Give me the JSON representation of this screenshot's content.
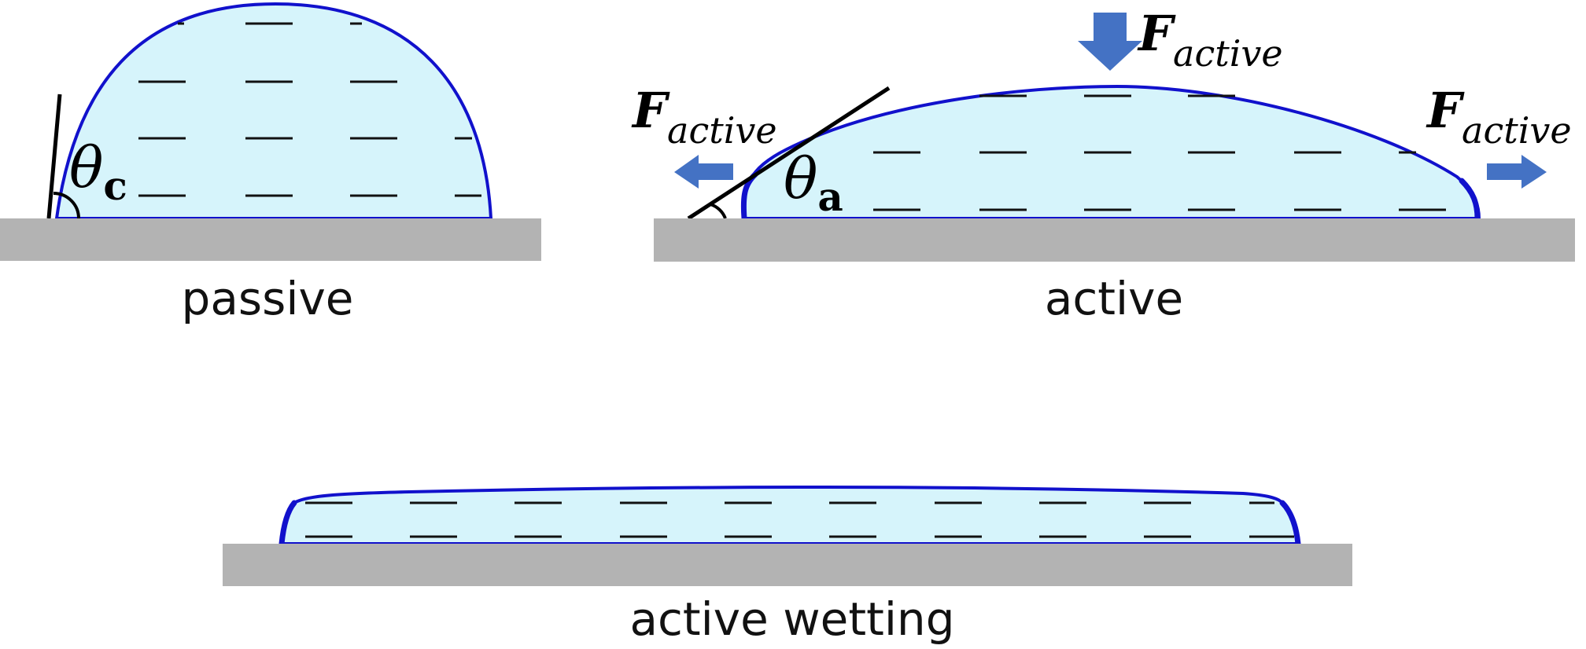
{
  "panels": {
    "passive": {
      "caption": "passive",
      "angle_symbol": "θ",
      "angle_subscript": "c"
    },
    "active": {
      "caption": "active",
      "angle_symbol": "θ",
      "angle_subscript": "a",
      "force_symbol": "F",
      "force_subscript": "active"
    },
    "active_wetting": {
      "caption": "active wetting"
    }
  },
  "colors": {
    "droplet_fill": "#d6f4fb",
    "droplet_outline": "#1111cc",
    "substrate": "#b3b3b3",
    "arrow": "#4472c4"
  }
}
